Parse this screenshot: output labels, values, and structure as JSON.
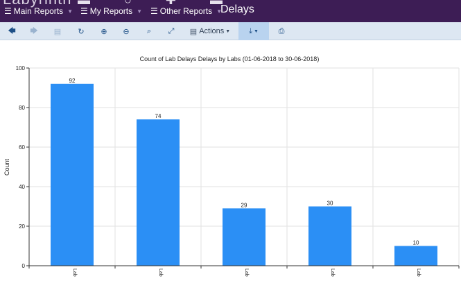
{
  "app": {
    "brand": "Labyrinth",
    "brand_icons": "▬ ○ ✚ ▬"
  },
  "nav": {
    "menus": [
      {
        "label": "Main Reports"
      },
      {
        "label": "My Reports"
      },
      {
        "label": "Other Reports"
      }
    ],
    "page_title": "Delays"
  },
  "toolbar": {
    "back": "🡄",
    "forward": "🡆",
    "page": "▤",
    "refresh": "↻",
    "zoom_in": "⊕",
    "zoom_out": "⊖",
    "zoom_fit": "⌕",
    "expand": "⤢",
    "actions_label": "Actions",
    "export": "⤓",
    "print": "⎙"
  },
  "colors": {
    "bar": "#2b8ff5",
    "topbar": "#3d1d55",
    "toolbar": "#dde7f2"
  },
  "chart_data": {
    "type": "bar",
    "title": "Count of Lab Delays Delays by Labs (01-06-2018 to 30-06-2018)",
    "ylabel": "Count",
    "xlabel": "",
    "ylim": [
      0,
      100
    ],
    "yticks": [
      0,
      20,
      40,
      60,
      80,
      100
    ],
    "categories": [
      "Lab",
      "Lab",
      "Lab",
      "Lab",
      "Lab"
    ],
    "values": [
      92,
      74,
      29,
      30,
      10
    ],
    "grid": true
  }
}
